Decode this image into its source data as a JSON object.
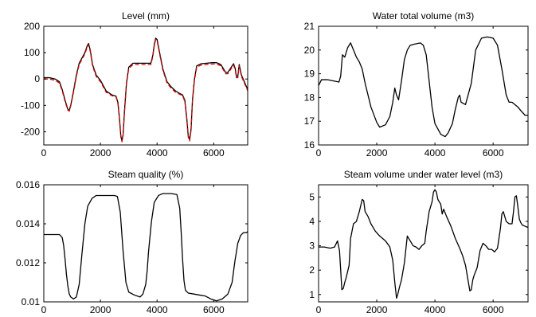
{
  "chart_data": [
    {
      "type": "line",
      "title": "Level (mm)",
      "xlim": [
        0,
        7200
      ],
      "ylim": [
        -250,
        200
      ],
      "xticks": [
        0,
        2000,
        4000,
        6000
      ],
      "yticks": [
        -200,
        -100,
        0,
        100,
        200
      ],
      "xticklabels": [
        "0",
        "2000",
        "4000",
        "6000"
      ],
      "yticklabels": [
        "-200",
        "-100",
        "0",
        "100",
        "200"
      ],
      "grid": false,
      "series": [
        {
          "color": "#000000",
          "dash": "solid",
          "x": [
            0,
            200,
            400,
            550,
            650,
            750,
            850,
            900,
            960,
            1050,
            1150,
            1250,
            1350,
            1450,
            1530,
            1580,
            1640,
            1720,
            1850,
            2000,
            2200,
            2400,
            2550,
            2620,
            2680,
            2720,
            2760,
            2800,
            2850,
            2920,
            3000,
            3150,
            3300,
            3500,
            3650,
            3780,
            3850,
            3900,
            3950,
            4000,
            4100,
            4200,
            4350,
            4500,
            4650,
            4800,
            4900,
            4980,
            5050,
            5100,
            5150,
            5200,
            5250,
            5320,
            5400,
            5550,
            5750,
            5950,
            6100,
            6250,
            6350,
            6420,
            6500,
            6620,
            6700,
            6760,
            6800,
            6850,
            6900,
            6980,
            7100,
            7200
          ],
          "y": [
            5,
            5,
            0,
            -10,
            -40,
            -80,
            -115,
            -120,
            -95,
            -45,
            15,
            60,
            80,
            100,
            125,
            135,
            110,
            55,
            15,
            -5,
            -45,
            -60,
            -65,
            -90,
            -160,
            -215,
            -235,
            -210,
            -120,
            -15,
            45,
            60,
            60,
            60,
            60,
            60,
            90,
            130,
            155,
            150,
            95,
            40,
            -10,
            -30,
            -45,
            -55,
            -60,
            -80,
            -150,
            -215,
            -230,
            -190,
            -80,
            0,
            50,
            58,
            60,
            62,
            62,
            55,
            38,
            25,
            25,
            45,
            58,
            40,
            10,
            10,
            55,
            15,
            -15,
            -40
          ]
        },
        {
          "color": "#dd0000",
          "dash": "dashed",
          "x": [
            0,
            200,
            400,
            550,
            650,
            750,
            850,
            900,
            960,
            1050,
            1150,
            1250,
            1350,
            1450,
            1530,
            1580,
            1640,
            1720,
            1850,
            2000,
            2200,
            2400,
            2550,
            2620,
            2680,
            2720,
            2760,
            2800,
            2850,
            2920,
            3000,
            3150,
            3300,
            3500,
            3650,
            3780,
            3850,
            3900,
            3950,
            4000,
            4100,
            4200,
            4350,
            4500,
            4650,
            4800,
            4900,
            4980,
            5050,
            5100,
            5150,
            5200,
            5250,
            5320,
            5400,
            5550,
            5750,
            5950,
            6100,
            6250,
            6350,
            6420,
            6500,
            6620,
            6700,
            6760,
            6800,
            6850,
            6900,
            6980,
            7100,
            7200
          ],
          "y": [
            0,
            0,
            -5,
            -15,
            -45,
            -85,
            -118,
            -122,
            -98,
            -50,
            10,
            55,
            75,
            95,
            120,
            130,
            105,
            50,
            10,
            -10,
            -50,
            -63,
            -68,
            -95,
            -165,
            -220,
            -238,
            -215,
            -125,
            -20,
            40,
            55,
            55,
            55,
            55,
            55,
            85,
            125,
            150,
            145,
            90,
            35,
            -15,
            -35,
            -50,
            -58,
            -63,
            -85,
            -155,
            -220,
            -235,
            -195,
            -85,
            -5,
            45,
            53,
            55,
            57,
            57,
            50,
            33,
            20,
            20,
            40,
            53,
            35,
            5,
            5,
            50,
            10,
            -20,
            -45
          ]
        }
      ]
    },
    {
      "type": "line",
      "title": "Water total volume (m3)",
      "xlim": [
        0,
        7200
      ],
      "ylim": [
        16,
        21
      ],
      "xticks": [
        0,
        2000,
        4000,
        6000
      ],
      "yticks": [
        16,
        17,
        18,
        19,
        20,
        21
      ],
      "xticklabels": [
        "0",
        "2000",
        "4000",
        "6000"
      ],
      "yticklabels": [
        "16",
        "17",
        "18",
        "19",
        "20",
        "21"
      ],
      "grid": false,
      "series": [
        {
          "color": "#000000",
          "dash": "solid",
          "x": [
            0,
            100,
            300,
            500,
            700,
            760,
            820,
            900,
            950,
            1000,
            1100,
            1200,
            1300,
            1400,
            1500,
            1600,
            1800,
            2000,
            2100,
            2300,
            2450,
            2550,
            2620,
            2680,
            2750,
            2850,
            2950,
            3050,
            3150,
            3300,
            3500,
            3600,
            3700,
            3800,
            3900,
            4000,
            4200,
            4350,
            4450,
            4600,
            4700,
            4800,
            4850,
            4900,
            5050,
            5250,
            5400,
            5600,
            5800,
            6000,
            6150,
            6300,
            6450,
            6550,
            6650,
            6750,
            6850,
            6950,
            7100,
            7200
          ],
          "y": [
            18.5,
            18.75,
            18.75,
            18.7,
            18.65,
            18.9,
            19.8,
            19.7,
            19.9,
            20.1,
            20.3,
            20.0,
            19.7,
            19.5,
            19.2,
            18.6,
            17.6,
            16.95,
            16.75,
            16.85,
            17.2,
            17.8,
            18.4,
            18.1,
            17.9,
            18.7,
            19.6,
            20.0,
            20.2,
            20.25,
            20.3,
            20.2,
            19.8,
            18.7,
            17.6,
            16.9,
            16.45,
            16.35,
            16.5,
            16.9,
            17.5,
            18.0,
            18.1,
            17.8,
            17.7,
            18.6,
            20.0,
            20.5,
            20.55,
            20.5,
            20.2,
            19.2,
            18.1,
            17.8,
            17.8,
            17.7,
            17.6,
            17.45,
            17.25,
            17.25
          ]
        }
      ]
    },
    {
      "type": "line",
      "title": "Steam quality (%)",
      "xlim": [
        0,
        7200
      ],
      "ylim": [
        0.01,
        0.016
      ],
      "xticks": [
        0,
        2000,
        4000,
        6000
      ],
      "yticks": [
        0.01,
        0.012,
        0.014,
        0.016
      ],
      "xticklabels": [
        "0",
        "2000",
        "4000",
        "6000"
      ],
      "yticklabels": [
        "0.01",
        "0.012",
        "0.014",
        "0.016"
      ],
      "grid": false,
      "series": [
        {
          "color": "#000000",
          "dash": "solid",
          "x": [
            0,
            300,
            550,
            650,
            700,
            750,
            800,
            850,
            900,
            950,
            1050,
            1150,
            1250,
            1350,
            1450,
            1550,
            1700,
            1850,
            2000,
            2300,
            2500,
            2600,
            2700,
            2800,
            2900,
            3000,
            3200,
            3400,
            3500,
            3600,
            3650,
            3700,
            3800,
            3900,
            4050,
            4200,
            4500,
            4700,
            4800,
            4850,
            4900,
            4950,
            5000,
            5100,
            5300,
            5500,
            5700,
            5900,
            6100,
            6300,
            6500,
            6650,
            6750,
            6850,
            6950,
            7050,
            7150,
            7200
          ],
          "y": [
            0.01345,
            0.01345,
            0.01345,
            0.0133,
            0.0129,
            0.0122,
            0.0114,
            0.0108,
            0.0104,
            0.01025,
            0.01015,
            0.01025,
            0.0109,
            0.0125,
            0.014,
            0.0149,
            0.0153,
            0.01545,
            0.01545,
            0.01545,
            0.01545,
            0.0154,
            0.0146,
            0.0126,
            0.011,
            0.0105,
            0.01035,
            0.01025,
            0.0104,
            0.0109,
            0.0116,
            0.0126,
            0.0141,
            0.0151,
            0.01545,
            0.01555,
            0.01555,
            0.0155,
            0.0148,
            0.0136,
            0.0122,
            0.0111,
            0.0106,
            0.01045,
            0.0104,
            0.01035,
            0.0103,
            0.01015,
            0.01005,
            0.01015,
            0.0104,
            0.011,
            0.0121,
            0.013,
            0.0134,
            0.01355,
            0.01355,
            0.0136
          ]
        }
      ]
    },
    {
      "type": "line",
      "title": "Steam volume under water level (m3)",
      "xlim": [
        0,
        7200
      ],
      "ylim": [
        0.7,
        5.5
      ],
      "xticks": [
        0,
        2000,
        4000,
        6000
      ],
      "yticks": [
        1,
        2,
        3,
        4,
        5
      ],
      "xticklabels": [
        "0",
        "2000",
        "4000",
        "6000"
      ],
      "yticklabels": [
        "1",
        "2",
        "3",
        "4",
        "5"
      ],
      "grid": false,
      "series": [
        {
          "color": "#000000",
          "dash": "solid",
          "x": [
            0,
            200,
            400,
            550,
            650,
            720,
            760,
            800,
            850,
            900,
            950,
            1050,
            1100,
            1200,
            1300,
            1400,
            1500,
            1550,
            1600,
            1700,
            1800,
            1950,
            2100,
            2300,
            2450,
            2550,
            2620,
            2680,
            2720,
            2780,
            2850,
            2950,
            3050,
            3150,
            3250,
            3350,
            3450,
            3550,
            3650,
            3700,
            3750,
            3800,
            3900,
            3950,
            4000,
            4050,
            4100,
            4200,
            4250,
            4300,
            4400,
            4550,
            4700,
            4850,
            4950,
            5050,
            5150,
            5200,
            5250,
            5300,
            5350,
            5450,
            5550,
            5650,
            5750,
            5850,
            5950,
            6050,
            6150,
            6250,
            6300,
            6350,
            6400,
            6450,
            6550,
            6650,
            6700,
            6750,
            6800,
            6850,
            6900,
            6950,
            7000,
            7100,
            7200
          ],
          "y": [
            2.95,
            2.95,
            2.9,
            2.95,
            3.2,
            2.8,
            2.0,
            1.2,
            1.25,
            1.5,
            1.7,
            2.2,
            3.3,
            3.9,
            4.0,
            4.4,
            4.9,
            4.85,
            4.4,
            4.2,
            3.9,
            3.6,
            3.4,
            3.2,
            2.95,
            2.4,
            1.5,
            0.85,
            1.0,
            1.3,
            1.6,
            2.3,
            3.4,
            3.2,
            3.0,
            2.95,
            2.85,
            3.0,
            3.1,
            3.6,
            4.0,
            4.4,
            4.8,
            5.2,
            5.3,
            5.2,
            4.9,
            4.7,
            4.3,
            4.5,
            4.2,
            3.8,
            3.3,
            2.9,
            2.6,
            2.2,
            1.5,
            1.15,
            1.2,
            1.6,
            1.8,
            2.1,
            2.8,
            3.1,
            3.0,
            2.85,
            2.85,
            2.75,
            2.9,
            3.7,
            4.3,
            4.4,
            4.2,
            4.0,
            3.9,
            3.9,
            4.4,
            5.0,
            5.05,
            4.6,
            4.1,
            3.95,
            3.85,
            3.8,
            3.75
          ]
        }
      ]
    }
  ]
}
